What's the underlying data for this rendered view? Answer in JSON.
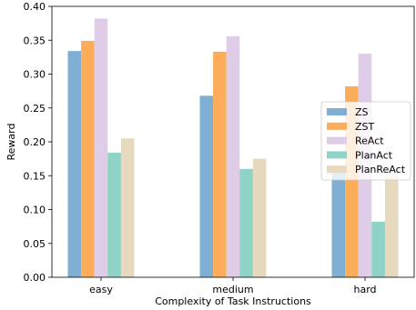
{
  "chart_data": {
    "type": "bar",
    "xlabel": "Complexity of Task Instructions",
    "ylabel": "Reward",
    "ylim": [
      0,
      0.4
    ],
    "yticks": [
      "0.00",
      "0.05",
      "0.10",
      "0.15",
      "0.20",
      "0.25",
      "0.30",
      "0.35",
      "0.40"
    ],
    "categories": [
      "easy",
      "medium",
      "hard"
    ],
    "series": [
      {
        "name": "ZS",
        "color": "#7fafd2",
        "values": [
          0.334,
          0.268,
          0.157
        ]
      },
      {
        "name": "ZST",
        "color": "#fdad5a",
        "values": [
          0.349,
          0.333,
          0.282
        ]
      },
      {
        "name": "ReAct",
        "color": "#dfcce6",
        "values": [
          0.382,
          0.356,
          0.33
        ]
      },
      {
        "name": "PlanAct",
        "color": "#8ed3c6",
        "values": [
          0.184,
          0.16,
          0.082
        ]
      },
      {
        "name": "PlanReAct",
        "color": "#e6d9bd",
        "values": [
          0.205,
          0.175,
          0.157
        ]
      }
    ],
    "grid": false,
    "legend_position": "center-right"
  }
}
